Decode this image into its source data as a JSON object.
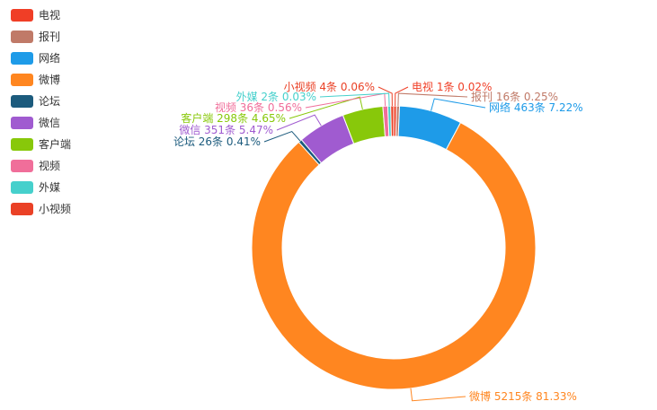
{
  "chart_data": {
    "type": "pie",
    "donut": true,
    "legend_placement": "top-left",
    "unit": "条",
    "series": [
      {
        "name": "电视",
        "value": 1,
        "percent": "0.02%",
        "color": "#f03e26"
      },
      {
        "name": "报刊",
        "value": 16,
        "percent": "0.25%",
        "color": "#c07a68"
      },
      {
        "name": "网络",
        "value": 463,
        "percent": "7.22%",
        "color": "#1e9be8"
      },
      {
        "name": "微博",
        "value": 5215,
        "percent": "81.33%",
        "color": "#ff8620"
      },
      {
        "name": "论坛",
        "value": 26,
        "percent": "0.41%",
        "color": "#1c5b7d"
      },
      {
        "name": "微信",
        "value": 351,
        "percent": "5.47%",
        "color": "#a05bd0"
      },
      {
        "name": "客户端",
        "value": 298,
        "percent": "4.65%",
        "color": "#88c80a"
      },
      {
        "name": "视频",
        "value": 36,
        "percent": "0.56%",
        "color": "#f06e9a"
      },
      {
        "name": "外媒",
        "value": 2,
        "percent": "0.03%",
        "color": "#46d0cc"
      },
      {
        "name": "小视频",
        "value": 4,
        "percent": "0.06%",
        "color": "#ea4126"
      }
    ]
  }
}
